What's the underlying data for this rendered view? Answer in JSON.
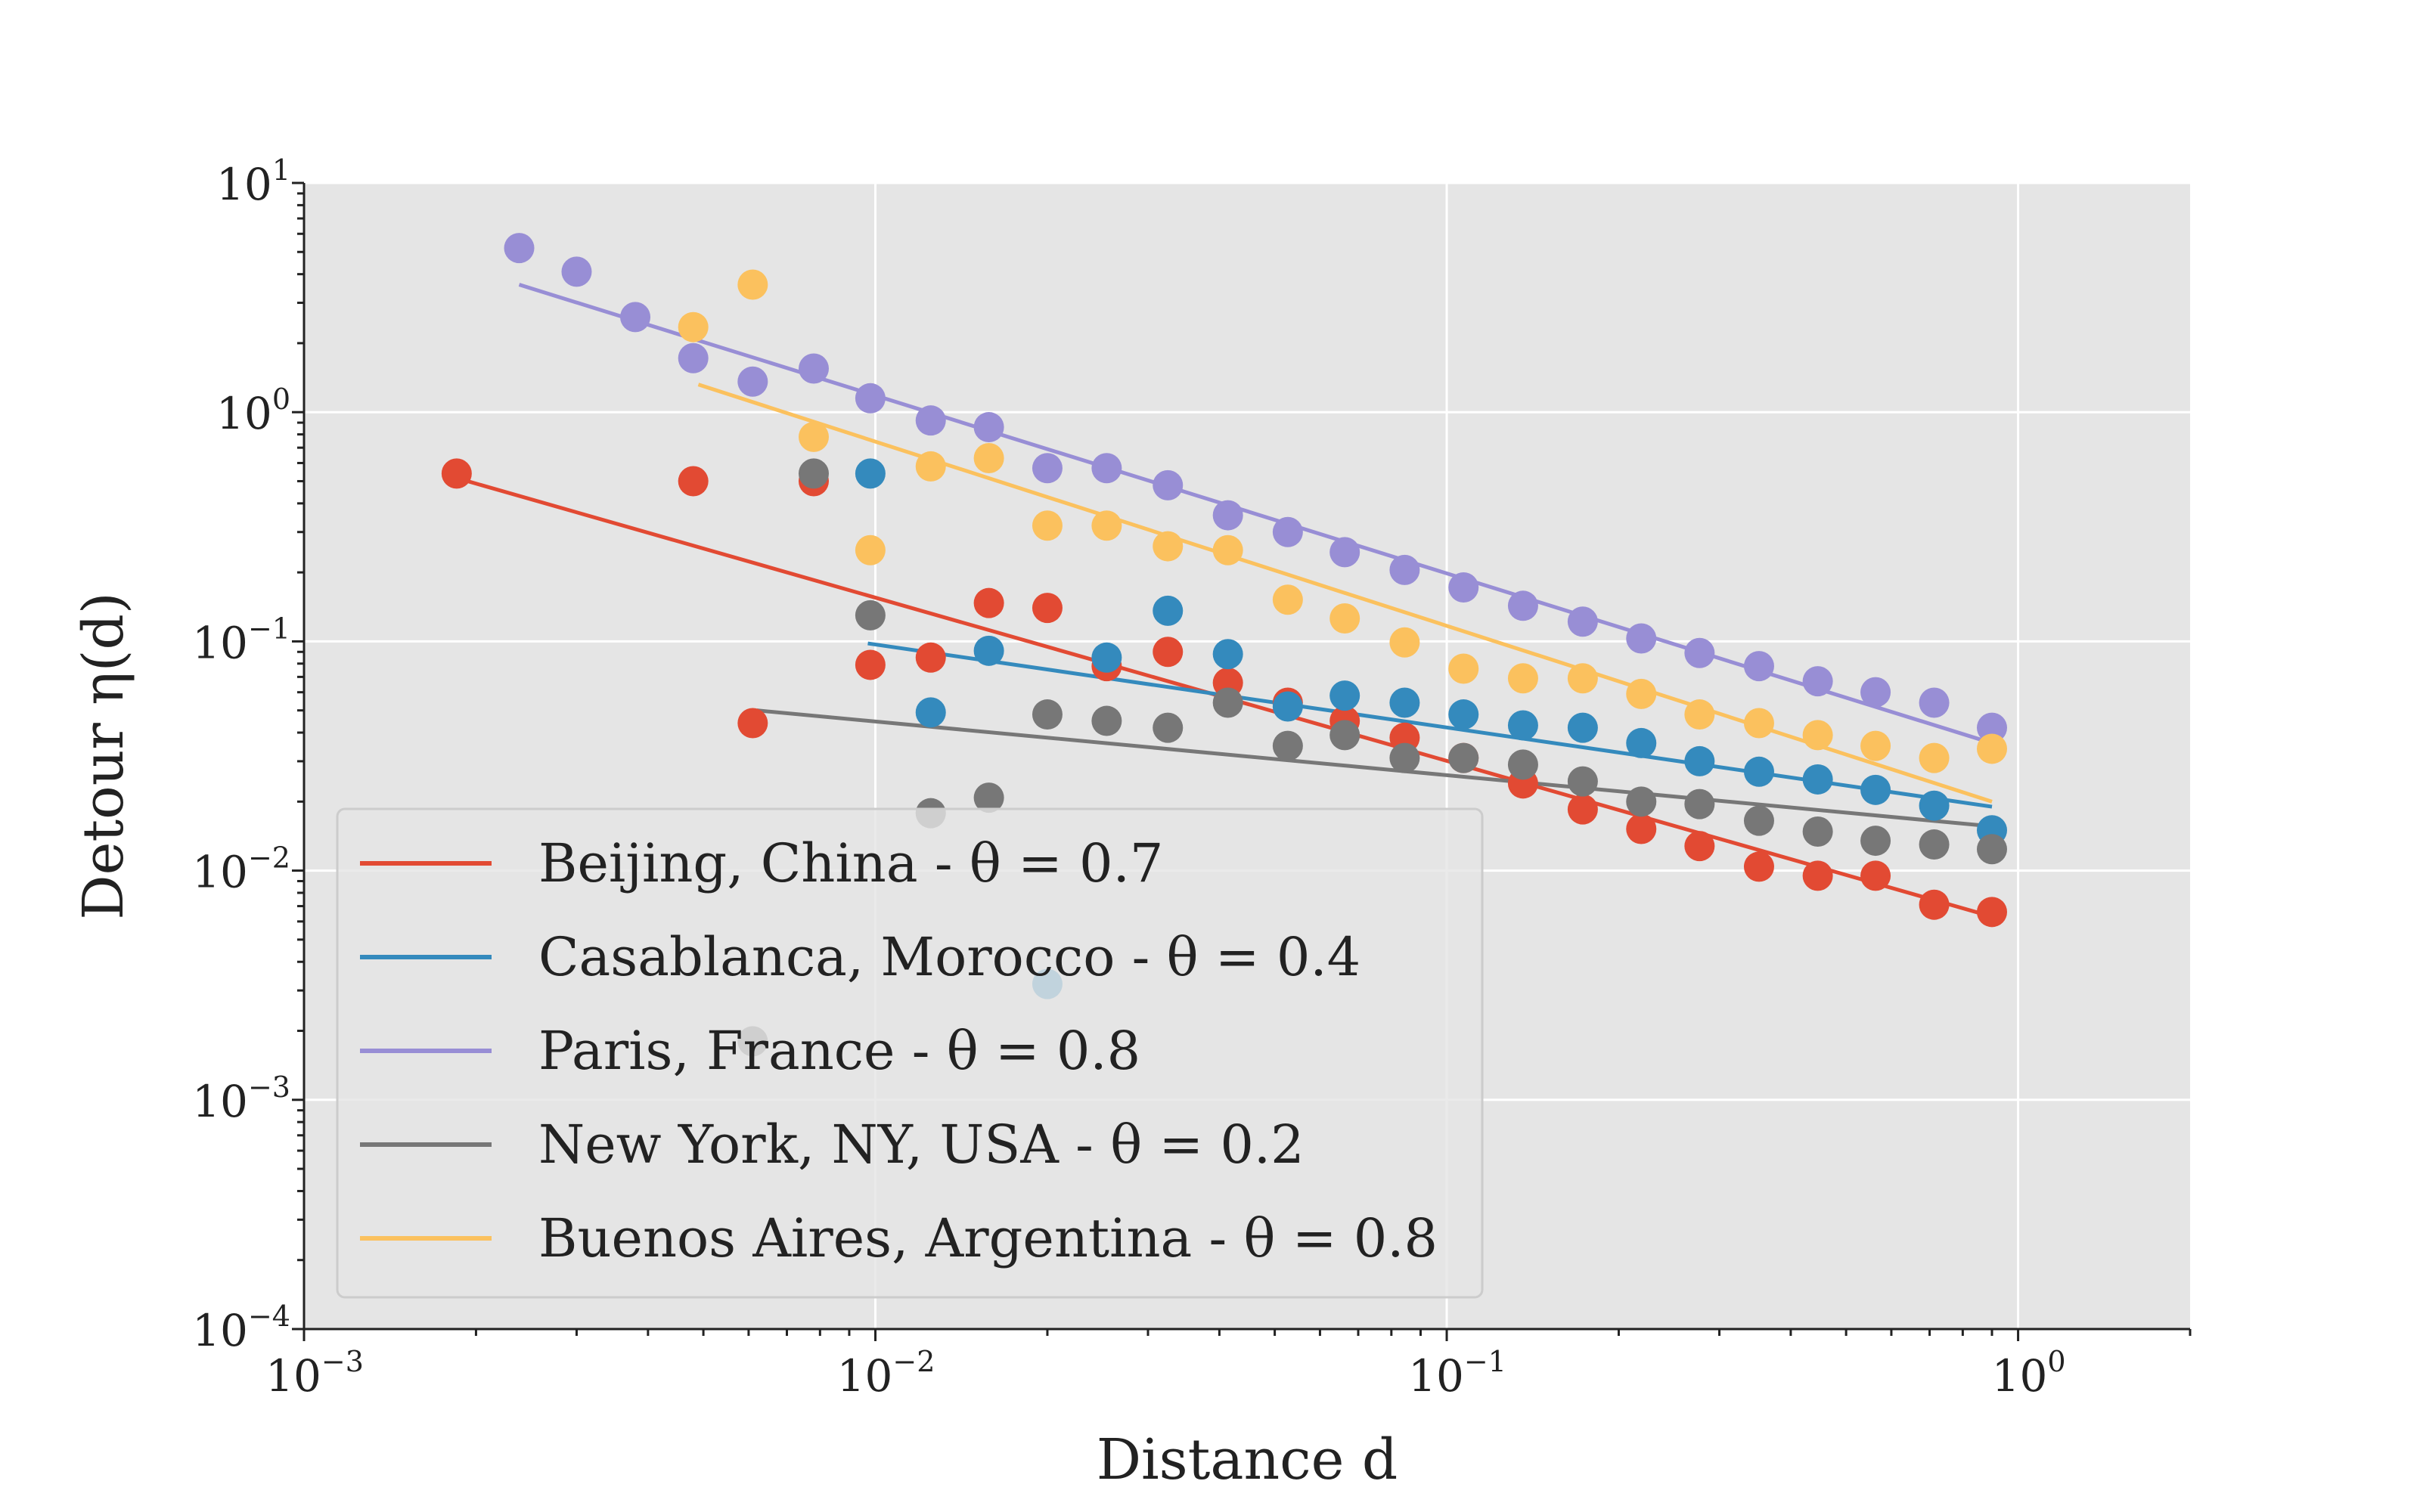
{
  "chart_data": {
    "type": "scatter",
    "title": "",
    "xlabel": "Distance d",
    "ylabel": "Detour η(d)",
    "xscale": "log",
    "yscale": "log",
    "xlim": [
      0.001,
      2.0
    ],
    "ylim": [
      0.0001,
      10
    ],
    "x_ticks": [
      {
        "base": "10",
        "exp": "−3",
        "value": 0.001
      },
      {
        "base": "10",
        "exp": "−2",
        "value": 0.01
      },
      {
        "base": "10",
        "exp": "−1",
        "value": 0.1
      },
      {
        "base": "10",
        "exp": "0",
        "value": 1
      }
    ],
    "y_ticks": [
      {
        "base": "10",
        "exp": "1",
        "value": 10
      },
      {
        "base": "10",
        "exp": "0",
        "value": 1
      },
      {
        "base": "10",
        "exp": "−1",
        "value": 0.1
      },
      {
        "base": "10",
        "exp": "−2",
        "value": 0.01
      },
      {
        "base": "10",
        "exp": "−3",
        "value": 0.001
      },
      {
        "base": "10",
        "exp": "−4",
        "value": 0.0001
      }
    ],
    "grid": true,
    "legend_position": "lower-left",
    "series": [
      {
        "name": "Beijing, China - θ = 0.7",
        "color": "#E24A33",
        "fit": {
          "x": [
            0.00188,
            0.9
          ],
          "y": [
            0.51,
            0.0063
          ]
        },
        "points": [
          [
            0.00185,
            0.54
          ],
          [
            0.0048,
            0.5
          ],
          [
            0.0061,
            0.044
          ],
          [
            0.0078,
            0.5
          ],
          [
            0.0098,
            0.079
          ],
          [
            0.0125,
            0.085
          ],
          [
            0.0158,
            0.147
          ],
          [
            0.02,
            0.14
          ],
          [
            0.0254,
            0.078
          ],
          [
            0.0325,
            0.09
          ],
          [
            0.0414,
            0.066
          ],
          [
            0.0527,
            0.054
          ],
          [
            0.0663,
            0.045
          ],
          [
            0.0844,
            0.038
          ],
          [
            0.107,
            0.031
          ],
          [
            0.136,
            0.024
          ],
          [
            0.173,
            0.0185
          ],
          [
            0.219,
            0.0152
          ],
          [
            0.277,
            0.0128
          ],
          [
            0.352,
            0.0104
          ],
          [
            0.446,
            0.0095
          ],
          [
            0.563,
            0.0095
          ],
          [
            0.713,
            0.0071
          ],
          [
            0.9,
            0.0066
          ]
        ]
      },
      {
        "name": "Casablanca, Morocco - θ = 0.4",
        "color": "#348ABD",
        "fit": {
          "x": [
            0.0097,
            0.9
          ],
          "y": [
            0.098,
            0.019
          ]
        },
        "points": [
          [
            0.0098,
            0.54
          ],
          [
            0.0125,
            0.049
          ],
          [
            0.0158,
            0.091
          ],
          [
            0.02,
            0.0032
          ],
          [
            0.0254,
            0.085
          ],
          [
            0.0325,
            0.136
          ],
          [
            0.0414,
            0.088
          ],
          [
            0.0527,
            0.052
          ],
          [
            0.0663,
            0.058
          ],
          [
            0.0844,
            0.054
          ],
          [
            0.107,
            0.048
          ],
          [
            0.136,
            0.043
          ],
          [
            0.173,
            0.042
          ],
          [
            0.219,
            0.036
          ],
          [
            0.277,
            0.03
          ],
          [
            0.352,
            0.027
          ],
          [
            0.446,
            0.025
          ],
          [
            0.563,
            0.0225
          ],
          [
            0.713,
            0.0192
          ],
          [
            0.9,
            0.015
          ]
        ]
      },
      {
        "name": "Paris, France - θ = 0.8",
        "color": "#988ED5",
        "fit": {
          "x": [
            0.00238,
            0.9
          ],
          "y": [
            3.6,
            0.036
          ]
        },
        "points": [
          [
            0.00238,
            5.2
          ],
          [
            0.003,
            4.1
          ],
          [
            0.0038,
            2.6
          ],
          [
            0.0048,
            1.72
          ],
          [
            0.0061,
            1.36
          ],
          [
            0.0078,
            1.55
          ],
          [
            0.0098,
            1.15
          ],
          [
            0.0125,
            0.92
          ],
          [
            0.0158,
            0.86
          ],
          [
            0.02,
            0.57
          ],
          [
            0.0254,
            0.57
          ],
          [
            0.0325,
            0.48
          ],
          [
            0.0414,
            0.355
          ],
          [
            0.0527,
            0.3
          ],
          [
            0.0663,
            0.245
          ],
          [
            0.0844,
            0.205
          ],
          [
            0.107,
            0.172
          ],
          [
            0.136,
            0.143
          ],
          [
            0.173,
            0.122
          ],
          [
            0.219,
            0.103
          ],
          [
            0.277,
            0.089
          ],
          [
            0.352,
            0.078
          ],
          [
            0.446,
            0.067
          ],
          [
            0.563,
            0.06
          ],
          [
            0.713,
            0.054
          ],
          [
            0.9,
            0.042
          ]
        ]
      },
      {
        "name": "New York, NY, USA - θ = 0.2",
        "color": "#777777",
        "fit": {
          "x": [
            0.0062,
            0.9
          ],
          "y": [
            0.05,
            0.0156
          ]
        },
        "points": [
          [
            0.0061,
            0.0018
          ],
          [
            0.0078,
            0.54
          ],
          [
            0.0098,
            0.13
          ],
          [
            0.0125,
            0.0178
          ],
          [
            0.0158,
            0.0208
          ],
          [
            0.02,
            0.048
          ],
          [
            0.0254,
            0.045
          ],
          [
            0.0325,
            0.042
          ],
          [
            0.0414,
            0.054
          ],
          [
            0.0527,
            0.035
          ],
          [
            0.0663,
            0.039
          ],
          [
            0.0844,
            0.031
          ],
          [
            0.107,
            0.031
          ],
          [
            0.136,
            0.029
          ],
          [
            0.173,
            0.0245
          ],
          [
            0.219,
            0.02
          ],
          [
            0.277,
            0.0195
          ],
          [
            0.352,
            0.0165
          ],
          [
            0.446,
            0.0148
          ],
          [
            0.563,
            0.0135
          ],
          [
            0.713,
            0.013
          ],
          [
            0.9,
            0.0124
          ]
        ]
      },
      {
        "name": "Buenos Aires, Argentina - θ = 0.8",
        "color": "#FBC15E",
        "fit": {
          "x": [
            0.0049,
            0.9
          ],
          "y": [
            1.32,
            0.02
          ]
        },
        "points": [
          [
            0.0048,
            2.35
          ],
          [
            0.0061,
            3.6
          ],
          [
            0.0078,
            0.78
          ],
          [
            0.0098,
            0.25
          ],
          [
            0.0125,
            0.58
          ],
          [
            0.0158,
            0.63
          ],
          [
            0.02,
            0.32
          ],
          [
            0.0254,
            0.32
          ],
          [
            0.0325,
            0.26
          ],
          [
            0.0414,
            0.25
          ],
          [
            0.0527,
            0.152
          ],
          [
            0.0663,
            0.126
          ],
          [
            0.0844,
            0.099
          ],
          [
            0.107,
            0.076
          ],
          [
            0.136,
            0.069
          ],
          [
            0.173,
            0.069
          ],
          [
            0.219,
            0.059
          ],
          [
            0.277,
            0.048
          ],
          [
            0.352,
            0.044
          ],
          [
            0.446,
            0.039
          ],
          [
            0.563,
            0.035
          ],
          [
            0.713,
            0.031
          ],
          [
            0.9,
            0.034
          ]
        ]
      }
    ]
  },
  "style": {
    "plot_background": "#E5E5E5",
    "grid_color": "#FFFFFF"
  }
}
